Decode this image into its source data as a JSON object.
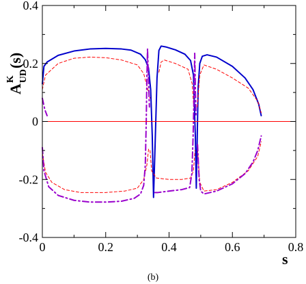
{
  "chart_data": {
    "type": "line",
    "caption": "(b)",
    "xlabel": "s",
    "ylabel": {
      "base": "A",
      "superscript": "K",
      "subscript": "UD",
      "suffix": "(s)"
    },
    "xlim": [
      0,
      0.8
    ],
    "ylim": [
      -0.4,
      0.4
    ],
    "x_ticks": [
      0,
      0.2,
      0.4,
      0.6,
      0.8
    ],
    "x_tick_labels": [
      "0",
      "0.2",
      "0.4",
      "0.6",
      "0.8"
    ],
    "y_ticks": [
      -0.4,
      -0.2,
      0,
      0.2,
      0.4
    ],
    "y_tick_labels": [
      "-0.4",
      "-0.2",
      "0",
      "0.2",
      "0.4"
    ],
    "grid": false,
    "legend": "none",
    "series": [
      {
        "style": "solid",
        "color": "#0000cc",
        "width": 2,
        "segments": [
          [
            [
              0.0,
              0.13
            ],
            [
              0.005,
              0.19
            ],
            [
              0.015,
              0.205
            ],
            [
              0.05,
              0.228
            ],
            [
              0.1,
              0.243
            ],
            [
              0.15,
              0.25
            ],
            [
              0.2,
              0.252
            ],
            [
              0.25,
              0.25
            ],
            [
              0.28,
              0.246
            ],
            [
              0.31,
              0.232
            ],
            [
              0.325,
              0.213
            ],
            [
              0.335,
              0.185
            ],
            [
              0.342,
              0.11
            ],
            [
              0.347,
              -0.05
            ],
            [
              0.351,
              -0.262
            ],
            [
              0.356,
              -0.08
            ],
            [
              0.362,
              0.15
            ],
            [
              0.368,
              0.245
            ],
            [
              0.375,
              0.26
            ],
            [
              0.39,
              0.257
            ],
            [
              0.42,
              0.247
            ],
            [
              0.45,
              0.232
            ],
            [
              0.468,
              0.21
            ],
            [
              0.477,
              0.16
            ],
            [
              0.483,
              -0.05
            ],
            [
              0.486,
              -0.23
            ],
            [
              0.489,
              -0.05
            ],
            [
              0.492,
              0.12
            ],
            [
              0.497,
              0.2
            ],
            [
              0.505,
              0.225
            ],
            [
              0.52,
              0.23
            ],
            [
              0.55,
              0.222
            ],
            [
              0.6,
              0.19
            ],
            [
              0.64,
              0.15
            ],
            [
              0.665,
              0.11
            ],
            [
              0.683,
              0.06
            ],
            [
              0.691,
              0.02
            ]
          ]
        ]
      },
      {
        "style": "dashed",
        "color": "#ff0000",
        "width": 1,
        "segments": [
          [
            [
              0.0,
              0.11
            ],
            [
              0.01,
              0.16
            ],
            [
              0.05,
              0.2
            ],
            [
              0.1,
              0.218
            ],
            [
              0.15,
              0.222
            ],
            [
              0.2,
              0.22
            ],
            [
              0.25,
              0.212
            ],
            [
              0.3,
              0.195
            ],
            [
              0.32,
              0.165
            ],
            [
              0.333,
              0.11
            ],
            [
              0.34,
              0.08
            ]
          ],
          [
            [
              0.34,
              -0.1
            ],
            [
              0.345,
              -0.17
            ],
            [
              0.36,
              -0.195
            ],
            [
              0.4,
              -0.2
            ],
            [
              0.44,
              -0.2
            ],
            [
              0.468,
              -0.195
            ],
            [
              0.477,
              -0.17
            ],
            [
              0.482,
              -0.1
            ]
          ],
          [
            [
              0.368,
              0.17
            ],
            [
              0.375,
              0.205
            ],
            [
              0.385,
              0.212
            ],
            [
              0.42,
              0.2
            ],
            [
              0.46,
              0.18
            ],
            [
              0.473,
              0.13
            ],
            [
              0.478,
              0.05
            ]
          ],
          [
            [
              0.489,
              0.05
            ],
            [
              0.497,
              0.16
            ],
            [
              0.51,
              0.195
            ],
            [
              0.55,
              0.18
            ],
            [
              0.6,
              0.15
            ],
            [
              0.65,
              0.115
            ],
            [
              0.68,
              0.07
            ],
            [
              0.691,
              0.03
            ]
          ],
          [
            [
              0.0,
              -0.11
            ],
            [
              0.01,
              -0.175
            ],
            [
              0.03,
              -0.21
            ],
            [
              0.07,
              -0.235
            ],
            [
              0.12,
              -0.245
            ],
            [
              0.2,
              -0.245
            ],
            [
              0.26,
              -0.24
            ],
            [
              0.3,
              -0.23
            ],
            [
              0.32,
              -0.2
            ],
            [
              0.33,
              -0.15
            ],
            [
              0.336,
              -0.09
            ]
          ],
          [
            [
              0.489,
              -0.08
            ],
            [
              0.497,
              -0.21
            ],
            [
              0.51,
              -0.24
            ],
            [
              0.55,
              -0.235
            ],
            [
              0.6,
              -0.21
            ],
            [
              0.65,
              -0.17
            ],
            [
              0.68,
              -0.12
            ],
            [
              0.691,
              -0.07
            ]
          ]
        ]
      },
      {
        "style": "dashdot",
        "color": "#9900cc",
        "width": 2,
        "segments": [
          [
            [
              0.0,
              -0.09
            ],
            [
              0.005,
              -0.17
            ],
            [
              0.02,
              -0.225
            ],
            [
              0.05,
              -0.255
            ],
            [
              0.1,
              -0.272
            ],
            [
              0.15,
              -0.278
            ],
            [
              0.2,
              -0.278
            ],
            [
              0.25,
              -0.275
            ],
            [
              0.29,
              -0.265
            ],
            [
              0.31,
              -0.25
            ],
            [
              0.32,
              -0.22
            ],
            [
              0.325,
              -0.15
            ],
            [
              0.328,
              0.0
            ],
            [
              0.33,
              0.15
            ],
            [
              0.332,
              0.25
            ],
            [
              0.335,
              0.15
            ],
            [
              0.338,
              0.05
            ]
          ],
          [
            [
              0.0,
              0.08
            ],
            [
              0.008,
              0.04
            ],
            [
              0.015,
              0.02
            ]
          ],
          [
            [
              0.355,
              -0.245
            ],
            [
              0.365,
              -0.245
            ],
            [
              0.4,
              -0.24
            ],
            [
              0.44,
              -0.235
            ],
            [
              0.465,
              -0.228
            ],
            [
              0.472,
              -0.18
            ],
            [
              0.476,
              -0.05
            ],
            [
              0.479,
              0.1
            ],
            [
              0.481,
              0.235
            ],
            [
              0.483,
              0.12
            ],
            [
              0.485,
              0.02
            ]
          ],
          [
            [
              0.49,
              -0.08
            ],
            [
              0.495,
              -0.2
            ],
            [
              0.5,
              -0.24
            ],
            [
              0.51,
              -0.25
            ],
            [
              0.55,
              -0.24
            ],
            [
              0.6,
              -0.215
            ],
            [
              0.64,
              -0.18
            ],
            [
              0.665,
              -0.14
            ],
            [
              0.68,
              -0.1
            ],
            [
              0.691,
              -0.05
            ]
          ]
        ]
      },
      {
        "style": "solid",
        "color": "#ff0000",
        "width": 1,
        "segments": [
          [
            [
              0.0,
              0.0
            ],
            [
              0.8,
              0.0
            ]
          ]
        ]
      }
    ]
  }
}
